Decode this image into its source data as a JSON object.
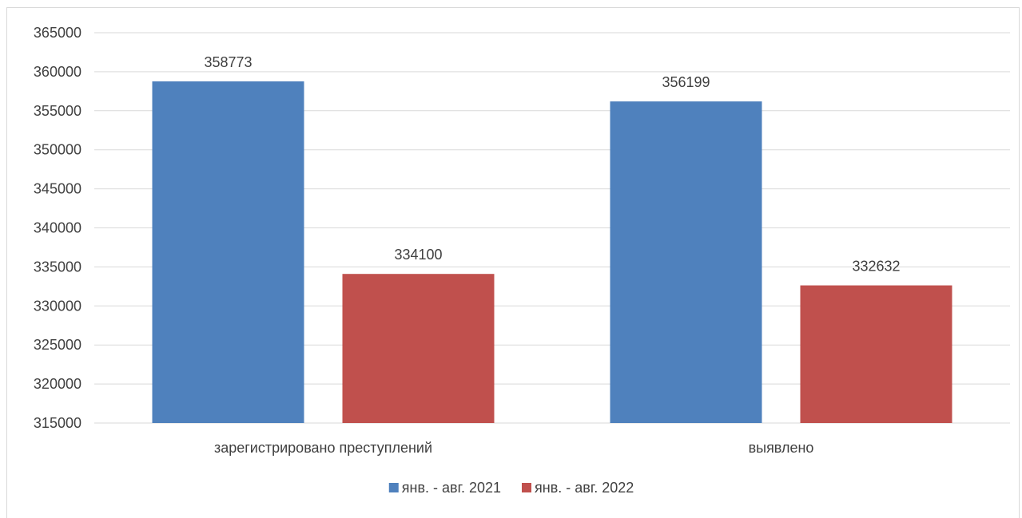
{
  "chart_data": {
    "type": "bar",
    "title": "",
    "xlabel": "",
    "ylabel": "",
    "categories": [
      "зарегистрировано преступлений",
      "выявлено"
    ],
    "series": [
      {
        "name": "янв. - авг. 2021",
        "values": [
          358773,
          356199
        ],
        "color": "#4f81bd"
      },
      {
        "name": "янв. - авг. 2022",
        "values": [
          334100,
          332632
        ],
        "color": "#c0504d"
      }
    ],
    "ylim": [
      315000,
      365000
    ],
    "yticks": [
      315000,
      320000,
      325000,
      330000,
      335000,
      340000,
      345000,
      350000,
      355000,
      360000,
      365000
    ],
    "grid": true,
    "legend": "bottom",
    "data_labels": true
  }
}
